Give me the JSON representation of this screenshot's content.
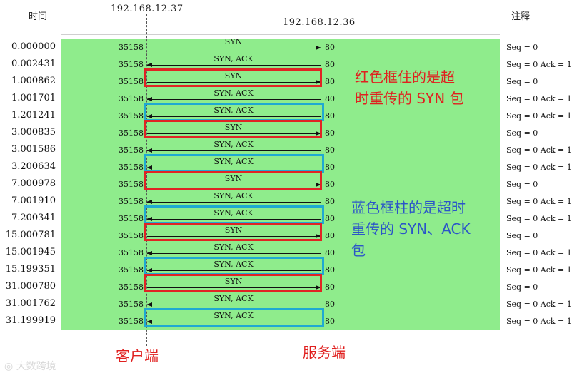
{
  "header": {
    "time_label": "时间",
    "note_label": "注释",
    "client_ip": "192.168.12.37",
    "server_ip": "192.168.12.36"
  },
  "rows": [
    {
      "time": "0.000000",
      "src_port": "35158",
      "dst_port": "80",
      "msg": "SYN",
      "dir": "right",
      "note": "Seq = 0",
      "box": "none"
    },
    {
      "time": "0.002431",
      "src_port": "35158",
      "dst_port": "80",
      "msg": "SYN, ACK",
      "dir": "left",
      "note": "Seq = 0 Ack = 1",
      "box": "none"
    },
    {
      "time": "1.000862",
      "src_port": "35158",
      "dst_port": "80",
      "msg": "SYN",
      "dir": "right",
      "note": "Seq = 0",
      "box": "red"
    },
    {
      "time": "1.001701",
      "src_port": "35158",
      "dst_port": "80",
      "msg": "SYN, ACK",
      "dir": "left",
      "note": "Seq = 0 Ack = 1",
      "box": "none"
    },
    {
      "time": "1.201241",
      "src_port": "35158",
      "dst_port": "80",
      "msg": "SYN, ACK",
      "dir": "left",
      "note": "Seq = 0 Ack = 1",
      "box": "blue"
    },
    {
      "time": "3.000835",
      "src_port": "35158",
      "dst_port": "80",
      "msg": "SYN",
      "dir": "right",
      "note": "Seq = 0",
      "box": "red"
    },
    {
      "time": "3.001586",
      "src_port": "35158",
      "dst_port": "80",
      "msg": "SYN, ACK",
      "dir": "left",
      "note": "Seq = 0 Ack = 1",
      "box": "none"
    },
    {
      "time": "3.200634",
      "src_port": "35158",
      "dst_port": "80",
      "msg": "SYN, ACK",
      "dir": "left",
      "note": "Seq = 0 Ack = 1",
      "box": "blue"
    },
    {
      "time": "7.000978",
      "src_port": "35158",
      "dst_port": "80",
      "msg": "SYN",
      "dir": "right",
      "note": "Seq = 0",
      "box": "red"
    },
    {
      "time": "7.001910",
      "src_port": "35158",
      "dst_port": "80",
      "msg": "SYN, ACK",
      "dir": "left",
      "note": "Seq = 0 Ack = 1",
      "box": "none"
    },
    {
      "time": "7.200341",
      "src_port": "35158",
      "dst_port": "80",
      "msg": "SYN, ACK",
      "dir": "left",
      "note": "Seq = 0 Ack = 1",
      "box": "blue"
    },
    {
      "time": "15.000781",
      "src_port": "35158",
      "dst_port": "80",
      "msg": "SYN",
      "dir": "right",
      "note": "Seq = 0",
      "box": "red"
    },
    {
      "time": "15.001945",
      "src_port": "35158",
      "dst_port": "80",
      "msg": "SYN, ACK",
      "dir": "left",
      "note": "Seq = 0 Ack = 1",
      "box": "none"
    },
    {
      "time": "15.199351",
      "src_port": "35158",
      "dst_port": "80",
      "msg": "SYN, ACK",
      "dir": "left",
      "note": "Seq = 0 Ack = 1",
      "box": "blue"
    },
    {
      "time": "31.000780",
      "src_port": "35158",
      "dst_port": "80",
      "msg": "SYN",
      "dir": "right",
      "note": "Seq = 0",
      "box": "red"
    },
    {
      "time": "31.001762",
      "src_port": "35158",
      "dst_port": "80",
      "msg": "SYN, ACK",
      "dir": "left",
      "note": "Seq = 0 Ack = 1",
      "box": "none"
    },
    {
      "time": "31.199919",
      "src_port": "35158",
      "dst_port": "80",
      "msg": "SYN, ACK",
      "dir": "left",
      "note": "Seq = 0 Ack = 1",
      "box": "blue"
    }
  ],
  "annotations": {
    "red_note_line1": "红色框住的是超",
    "red_note_line2": "时重传的 SYN 包",
    "blue_note_line1": "蓝色框柱的是超时",
    "blue_note_line2": "重传的 SYN、ACK",
    "blue_note_line3": "包"
  },
  "footer": {
    "client_label": "客户端",
    "server_label": "服务端"
  },
  "watermark": "大数跨境",
  "colors": {
    "background": "#8fec8c",
    "red_box": "#e02424",
    "blue_box": "#1fa9d2",
    "red_text": "#e0201f",
    "blue_text": "#2b55c8"
  }
}
